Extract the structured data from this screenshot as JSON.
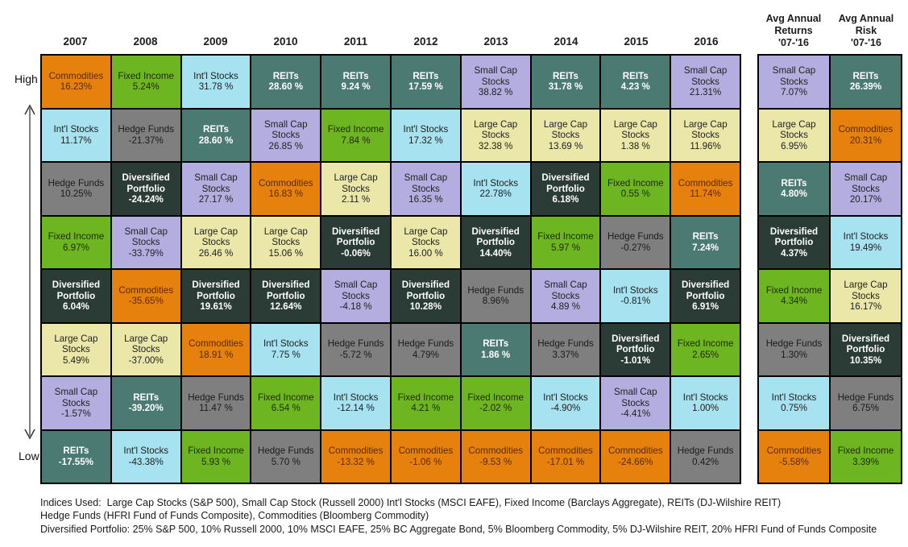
{
  "chart_data": {
    "type": "table",
    "title": "Asset class returns quilt (periodic table of investment returns) 2007-2016",
    "rank_axis": {
      "high": "High",
      "low": "Low"
    },
    "years": [
      "2007",
      "2008",
      "2009",
      "2010",
      "2011",
      "2012",
      "2013",
      "2014",
      "2015",
      "2016"
    ],
    "summary_columns": [
      {
        "label_lines": [
          "Avg Annual",
          "Returns",
          "'07-'16"
        ]
      },
      {
        "label_lines": [
          "Avg Annual",
          "Risk",
          "'07-'16"
        ]
      }
    ],
    "asset_classes": {
      "Commodities": {
        "bg": "#E5810C",
        "text": "#5C2A02",
        "bold": false
      },
      "Fixed Income": {
        "bg": "#6DB521",
        "text": "#1f2a05",
        "bold": false
      },
      "Int'l Stocks": {
        "bg": "#A6E2EF",
        "text": "#1f1f1f",
        "bold": false
      },
      "REITs": {
        "bg": "#4A7A72",
        "text": "#ffffff",
        "bold": true
      },
      "Small Cap Stocks": {
        "bg": "#B3AEDF",
        "text": "#1f1f1f",
        "bold": false
      },
      "Hedge Funds": {
        "bg": "#7F7F7F",
        "text": "#1b1b1b",
        "bold": false
      },
      "Diversified Portfolio": {
        "bg": "#2B3B36",
        "text": "#ffffff",
        "bold": true
      },
      "Large Cap Stocks": {
        "bg": "#EBE7A9",
        "text": "#1f1f1f",
        "bold": false
      }
    },
    "rows": [
      {
        "cells": [
          [
            "Commodities",
            "16.23%"
          ],
          [
            "Fixed Income",
            "5.24%"
          ],
          [
            "Int'l Stocks",
            "31.78 %"
          ],
          [
            "REITs",
            "28.60 %"
          ],
          [
            "REITs",
            "9.24 %"
          ],
          [
            "REITs",
            "17.59 %"
          ],
          [
            "Small Cap Stocks",
            "38.82 %"
          ],
          [
            "REITs",
            "31.78 %"
          ],
          [
            "REITs",
            "4.23 %"
          ],
          [
            "Small Cap Stocks",
            "21.31%"
          ]
        ],
        "avg": [
          [
            "Small Cap Stocks",
            "7.07%"
          ],
          [
            "REITs",
            "26.39%"
          ]
        ]
      },
      {
        "cells": [
          [
            "Int'l Stocks",
            "11.17%"
          ],
          [
            "Hedge Funds",
            "-21.37%"
          ],
          [
            "REITs",
            "28.60 %"
          ],
          [
            "Small Cap Stocks",
            "26.85 %"
          ],
          [
            "Fixed Income",
            "7.84 %"
          ],
          [
            "Int'l Stocks",
            "17.32 %"
          ],
          [
            "Large Cap Stocks",
            "32.38 %"
          ],
          [
            "Large Cap Stocks",
            "13.69 %"
          ],
          [
            "Large Cap Stocks",
            "1.38 %"
          ],
          [
            "Large Cap Stocks",
            "11.96%"
          ]
        ],
        "avg": [
          [
            "Large Cap Stocks",
            "6.95%"
          ],
          [
            "Commodities",
            "20.31%"
          ]
        ]
      },
      {
        "cells": [
          [
            "Hedge Funds",
            "10.25%"
          ],
          [
            "Diversified Portfolio",
            "-24.24%"
          ],
          [
            "Small Cap Stocks",
            "27.17 %"
          ],
          [
            "Commodities",
            "16.83 %"
          ],
          [
            "Large Cap Stocks",
            "2.11 %"
          ],
          [
            "Small Cap Stocks",
            "16.35 %"
          ],
          [
            "Int'l Stocks",
            "22.78%"
          ],
          [
            "Diversified Portfolio",
            "6.18%"
          ],
          [
            "Fixed Income",
            "0.55 %"
          ],
          [
            "Commodities",
            "11.74%"
          ]
        ],
        "avg": [
          [
            "REITs",
            "4.80%"
          ],
          [
            "Small Cap Stocks",
            "20.17%"
          ]
        ]
      },
      {
        "cells": [
          [
            "Fixed Income",
            "6.97%"
          ],
          [
            "Small Cap Stocks",
            "-33.79%"
          ],
          [
            "Large Cap Stocks",
            "26.46 %"
          ],
          [
            "Large Cap Stocks",
            "15.06 %"
          ],
          [
            "Diversified Portfolio",
            "-0.06%"
          ],
          [
            "Large Cap Stocks",
            "16.00 %"
          ],
          [
            "Diversified Portfolio",
            "14.40%"
          ],
          [
            "Fixed Income",
            "5.97 %"
          ],
          [
            "Hedge Funds",
            "-0.27%"
          ],
          [
            "REITs",
            "7.24%"
          ]
        ],
        "avg": [
          [
            "Diversified Portfolio",
            "4.37%"
          ],
          [
            "Int'l Stocks",
            "19.49%"
          ]
        ]
      },
      {
        "cells": [
          [
            "Diversified Portfolio",
            "6.04%"
          ],
          [
            "Commodities",
            "-35.65%"
          ],
          [
            "Diversified Portfolio",
            "19.61%"
          ],
          [
            "Diversified Portfolio",
            "12.64%"
          ],
          [
            "Small Cap Stocks",
            "-4.18 %"
          ],
          [
            "Diversified Portfolio",
            "10.28%"
          ],
          [
            "Hedge Funds",
            "8.96%"
          ],
          [
            "Small Cap Stocks",
            "4.89 %"
          ],
          [
            "Int'l Stocks",
            "-0.81%"
          ],
          [
            "Diversified Portfolio",
            "6.91%"
          ]
        ],
        "avg": [
          [
            "Fixed Income",
            "4.34%"
          ],
          [
            "Large Cap Stocks",
            "16.17%"
          ]
        ]
      },
      {
        "cells": [
          [
            "Large Cap Stocks",
            "5.49%"
          ],
          [
            "Large Cap Stocks",
            "-37.00%"
          ],
          [
            "Commodities",
            "18.91 %"
          ],
          [
            "Int'l Stocks",
            "7.75 %"
          ],
          [
            "Hedge Funds",
            "-5.72 %"
          ],
          [
            "Hedge Funds",
            "4.79%"
          ],
          [
            "REITs",
            "1.86 %"
          ],
          [
            "Hedge Funds",
            "3.37%"
          ],
          [
            "Diversified Portfolio",
            "-1.01%"
          ],
          [
            "Fixed Income",
            "2.65%"
          ]
        ],
        "avg": [
          [
            "Hedge Funds",
            "1.30%"
          ],
          [
            "Diversified Portfolio",
            "10.35%"
          ]
        ]
      },
      {
        "cells": [
          [
            "Small Cap Stocks",
            "-1.57%"
          ],
          [
            "REITs",
            "-39.20%"
          ],
          [
            "Hedge Funds",
            "11.47 %"
          ],
          [
            "Fixed Income",
            "6.54 %"
          ],
          [
            "Int'l Stocks",
            "-12.14 %"
          ],
          [
            "Fixed Income",
            "4.21 %"
          ],
          [
            "Fixed Income",
            "-2.02 %"
          ],
          [
            "Int'l Stocks",
            "-4.90%"
          ],
          [
            "Small Cap Stocks",
            "-4.41%"
          ],
          [
            "Int'l Stocks",
            "1.00%"
          ]
        ],
        "avg": [
          [
            "Int'l Stocks",
            "0.75%"
          ],
          [
            "Hedge Funds",
            "6.75%"
          ]
        ]
      },
      {
        "cells": [
          [
            "REITs",
            "-17.55%"
          ],
          [
            "Int'l Stocks",
            "-43.38%"
          ],
          [
            "Fixed Income",
            "5.93 %"
          ],
          [
            "Hedge Funds",
            "5.70 %"
          ],
          [
            "Commodities",
            "-13.32 %"
          ],
          [
            "Commodities",
            "-1.06 %"
          ],
          [
            "Commodities",
            "-9.53 %"
          ],
          [
            "Commodities",
            "-17.01 %"
          ],
          [
            "Commodities",
            "-24.66%"
          ],
          [
            "Hedge Funds",
            "0.42%"
          ]
        ],
        "avg": [
          [
            "Commodities",
            "-5.58%"
          ],
          [
            "Fixed Income",
            "3.39%"
          ]
        ]
      }
    ]
  },
  "footer": {
    "line1": "Indices Used:  Large Cap Stocks (S&P 500), Small Cap Stock (Russell 2000) Int'l Stocks (MSCI EAFE), Fixed Income (Barclays Aggregate), REITs (DJ-Wilshire REIT)",
    "line2": "Hedge Funds (HFRI Fund of Funds Composite), Commodities (Bloomberg Commodity)",
    "line3": "Diversified Portfolio: 25% S&P 500, 10% Russell 2000, 10% MSCI EAFE, 25% BC Aggregate Bond, 5% Bloomberg Commodity, 5% DJ-Wilshire REIT, 20% HFRI Fund of Funds Composite"
  }
}
